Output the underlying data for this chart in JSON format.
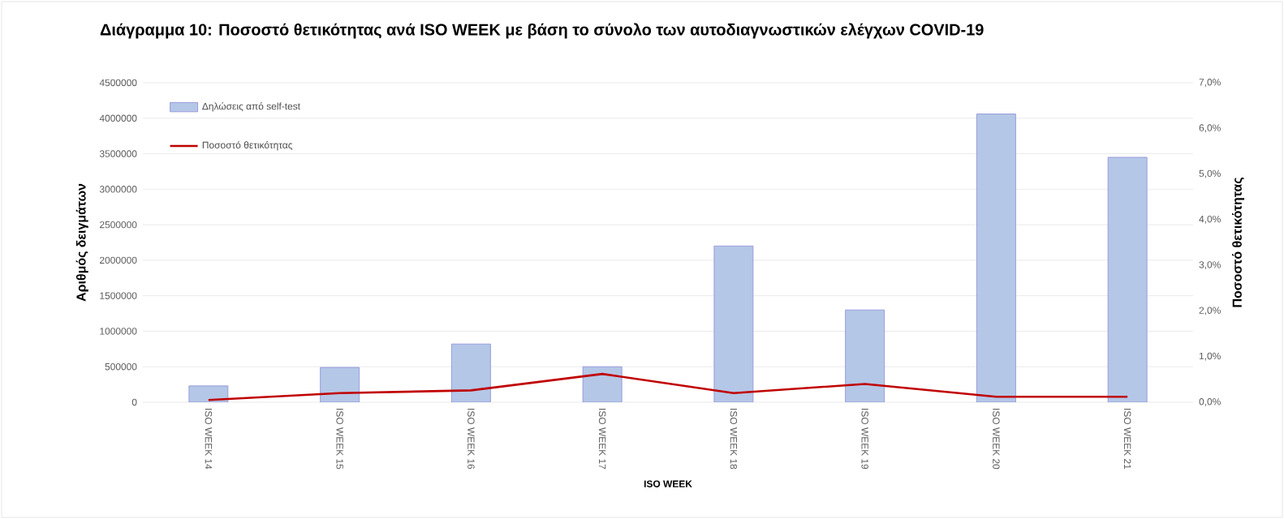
{
  "chart_data": {
    "type": "bar",
    "title": "Διάγραμμα 10: Ποσοστό  θετικότητας  ανά  ISO WEEK  με βάση  το σύνολο  των  αυτοδιαγνωστικών  ελέγχων  COVID-19",
    "xlabel": "ISO WEEK",
    "ylabel": "Αριθμός δειγμάτων",
    "y2label": "Ποσοστό θετικότητας",
    "categories": [
      "ISO WEEK 14",
      "ISO WEEK 15",
      "ISO WEEK 16",
      "ISO WEEK 17",
      "ISO WEEK 18",
      "ISO WEEK 19",
      "ISO WEEK 20",
      "ISO WEEK 21"
    ],
    "series": [
      {
        "name": "Δηλώσεις από self-test",
        "color": "#b4c7e7",
        "values": [
          230000,
          490000,
          820000,
          500000,
          2200000,
          1300000,
          4060000,
          3450000
        ]
      },
      {
        "name": "Ποσοστό θετικότητας",
        "type": "line",
        "axis": "y2",
        "color": "#c00000",
        "values": [
          0.05,
          0.2,
          0.26,
          0.62,
          0.2,
          0.4,
          0.12,
          0.12
        ]
      }
    ],
    "ylim": [
      0,
      4500000
    ],
    "yticks": [
      0,
      500000,
      1000000,
      1500000,
      2000000,
      2500000,
      3000000,
      3500000,
      4000000,
      4500000
    ],
    "y2lim": [
      0,
      7
    ],
    "y2ticks": [
      {
        "value": 0,
        "label": "0,0%"
      },
      {
        "value": 1,
        "label": "1,0%"
      },
      {
        "value": 2,
        "label": "2,0%"
      },
      {
        "value": 3,
        "label": "3,0%"
      },
      {
        "value": 4,
        "label": "4,0%"
      },
      {
        "value": 5,
        "label": "5,0%"
      },
      {
        "value": 6,
        "label": "6,0%"
      },
      {
        "value": 7,
        "label": "7,0%"
      }
    ],
    "grid": "y",
    "legend": "top left",
    "marker": "none",
    "line_style": "solid"
  }
}
